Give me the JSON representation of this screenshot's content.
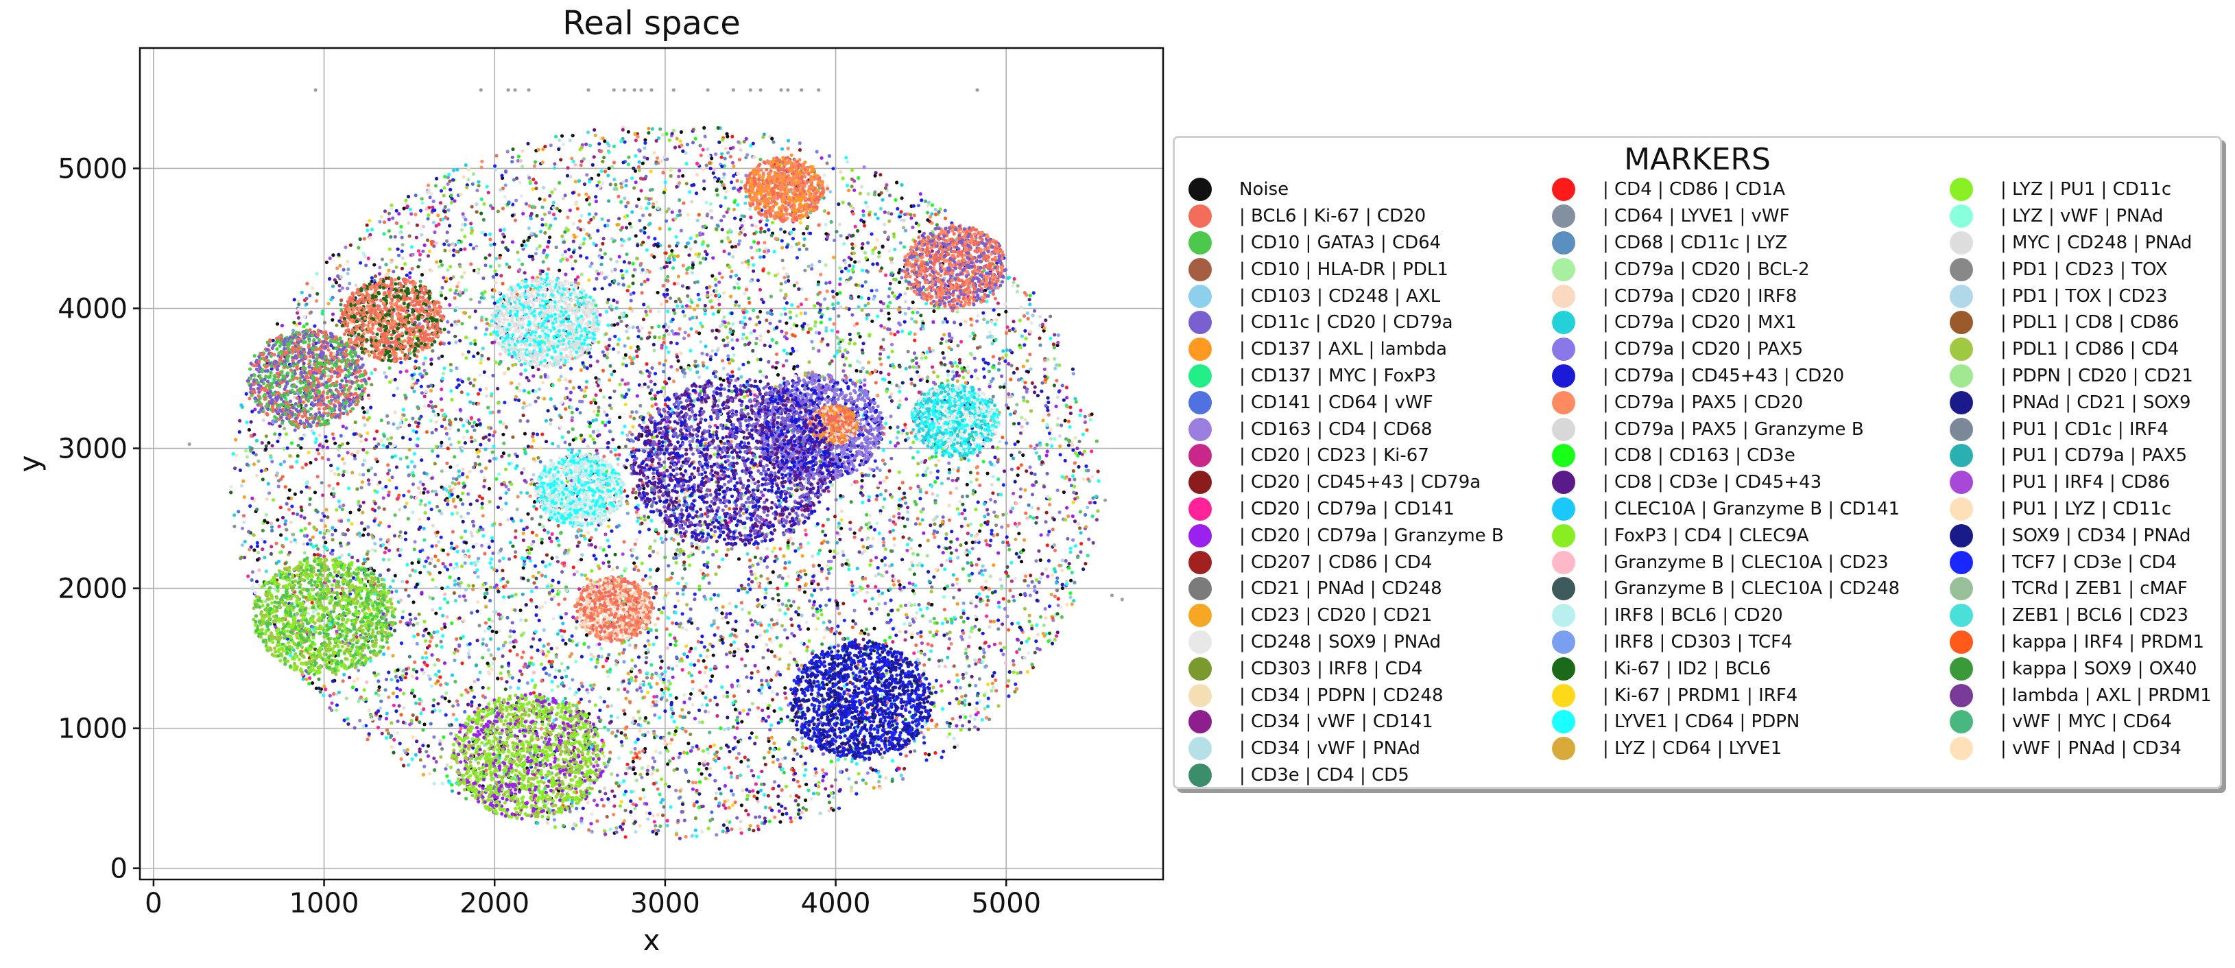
{
  "chart_data": {
    "type": "scatter",
    "title": "Real space",
    "xlabel": "x",
    "ylabel": "y",
    "xlim": [
      -80,
      5920
    ],
    "ylim": [
      -80,
      5860
    ],
    "xticks": [
      0,
      1000,
      2000,
      3000,
      4000,
      5000
    ],
    "yticks": [
      0,
      1000,
      2000,
      3000,
      4000,
      5000
    ],
    "grid": true,
    "legend_placement": "right",
    "legend_title": "MARKERS",
    "region": {
      "center": [
        3000,
        2760
      ],
      "radius_x": 2550,
      "radius_y": 2550
    },
    "series": [
      {
        "name": "Noise",
        "color": "#111111",
        "weight": 8
      },
      {
        "name": "| BCL6 | Ki-67 | CD20",
        "color": "#f46d5a",
        "weight": 6
      },
      {
        "name": "| CD10 | GATA3 | CD64",
        "color": "#4cc94c",
        "weight": 3
      },
      {
        "name": "| CD10 | HLA-DR | PDL1",
        "color": "#a65e42",
        "weight": 1
      },
      {
        "name": "| CD103 | CD248 | AXL",
        "color": "#8ecfee",
        "weight": 2
      },
      {
        "name": "| CD11c | CD20 | CD79a",
        "color": "#7a5fd1",
        "weight": 5
      },
      {
        "name": "| CD137 | AXL | lambda",
        "color": "#ff9922",
        "weight": 2
      },
      {
        "name": "| CD137 | MYC | FoxP3",
        "color": "#22ee88",
        "weight": 2
      },
      {
        "name": "| CD141 | CD64 | vWF",
        "color": "#4f72e0",
        "weight": 3
      },
      {
        "name": "| CD163 | CD4 | CD68",
        "color": "#9b7fe0",
        "weight": 4
      },
      {
        "name": "| CD20 | CD23 | Ki-67",
        "color": "#c9288a",
        "weight": 2
      },
      {
        "name": "| CD20 | CD45+43 | CD79a",
        "color": "#8b1c1c",
        "weight": 1
      },
      {
        "name": "| CD20 | CD79a | CD141",
        "color": "#ff2299",
        "weight": 2
      },
      {
        "name": "| CD20 | CD79a | Granzyme B",
        "color": "#9b22ee",
        "weight": 4
      },
      {
        "name": "| CD207 | CD86 | CD4",
        "color": "#a01f1f",
        "weight": 1
      },
      {
        "name": "| CD21 | PNAd | CD248",
        "color": "#7b7b7b",
        "weight": 1
      },
      {
        "name": "| CD23 | CD20 | CD21",
        "color": "#f5a623",
        "weight": 2
      },
      {
        "name": "| CD248 | SOX9 | PNAd",
        "color": "#e8e8e8",
        "weight": 3
      },
      {
        "name": "| CD303 | IRF8 | CD4",
        "color": "#7a9a2e",
        "weight": 2
      },
      {
        "name": "| CD34 | PDPN | CD248",
        "color": "#f5deb3",
        "weight": 1
      },
      {
        "name": "| CD34 | vWF | CD141",
        "color": "#8e1e8e",
        "weight": 2
      },
      {
        "name": "| CD34 | vWF | PNAd",
        "color": "#b6e0e8",
        "weight": 1
      },
      {
        "name": "| CD3e | CD4 | CD5",
        "color": "#3a8f6a",
        "weight": 1
      },
      {
        "name": "| CD4 | CD86 | CD1A",
        "color": "#ff1a1a",
        "weight": 2
      },
      {
        "name": "| CD64 | LYVE1 | vWF",
        "color": "#8390a0",
        "weight": 1
      },
      {
        "name": "| CD68 | CD11c | LYZ",
        "color": "#5b8fc0",
        "weight": 1
      },
      {
        "name": "| CD79a | CD20 | BCL-2",
        "color": "#a8f0a0",
        "weight": 2
      },
      {
        "name": "| CD79a | CD20 | IRF8",
        "color": "#fbd8c0",
        "weight": 2
      },
      {
        "name": "| CD79a | CD20 | MX1",
        "color": "#22d2d8",
        "weight": 3
      },
      {
        "name": "| CD79a | CD20 | PAX5",
        "color": "#8a78e8",
        "weight": 3
      },
      {
        "name": "| CD79a | CD45+43 | CD20",
        "color": "#1a1ad8",
        "weight": 6
      },
      {
        "name": "| CD79a | PAX5 | CD20",
        "color": "#ff8a60",
        "weight": 3
      },
      {
        "name": "| CD79a | PAX5 | Granzyme B",
        "color": "#d8d8d8",
        "weight": 2
      },
      {
        "name": "| CD8 | CD163 | CD3e",
        "color": "#1aff1a",
        "weight": 2
      },
      {
        "name": "| CD8 | CD3e | CD45+43",
        "color": "#5a1a8a",
        "weight": 3
      },
      {
        "name": "| CLEC10A | Granzyme B | CD141",
        "color": "#1ac8ff",
        "weight": 2
      },
      {
        "name": "| FoxP3 | CD4 | CLEC9A",
        "color": "#88ee22",
        "weight": 3
      },
      {
        "name": "| Granzyme B | CLEC10A | CD23",
        "color": "#ffb8c8",
        "weight": 1
      },
      {
        "name": "| Granzyme B | CLEC10A | CD248",
        "color": "#3f5a5a",
        "weight": 1
      },
      {
        "name": "| IRF8 | BCL6 | CD20",
        "color": "#b8f0f0",
        "weight": 2
      },
      {
        "name": "| IRF8 | CD303 | TCF4",
        "color": "#7a9ef0",
        "weight": 2
      },
      {
        "name": "| Ki-67 | ID2 | BCL6",
        "color": "#1a6a1a",
        "weight": 2
      },
      {
        "name": "| Ki-67 | PRDM1 | IRF4",
        "color": "#ffd81a",
        "weight": 1
      },
      {
        "name": "| LYVE1 | CD64 | PDPN",
        "color": "#1affff",
        "weight": 6
      },
      {
        "name": "| LYZ | CD64 | LYVE1",
        "color": "#d8a838",
        "weight": 1
      },
      {
        "name": "| LYZ | PU1 | CD11c",
        "color": "#88f022",
        "weight": 3
      },
      {
        "name": "| LYZ | vWF | PNAd",
        "color": "#88ffdd",
        "weight": 1
      },
      {
        "name": "| MYC | CD248 | PNAd",
        "color": "#dddddd",
        "weight": 2
      },
      {
        "name": "| PD1 | CD23 | TOX",
        "color": "#888888",
        "weight": 1
      },
      {
        "name": "| PD1 | TOX | CD23",
        "color": "#b0d8e8",
        "weight": 1
      },
      {
        "name": "| PDL1 | CD8 | CD86",
        "color": "#9a5a2a",
        "weight": 1
      },
      {
        "name": "| PDL1 | CD86 | CD4",
        "color": "#a0c840",
        "weight": 3
      },
      {
        "name": "| PDPN | CD20 | CD21",
        "color": "#a0e890",
        "weight": 2
      },
      {
        "name": "| PNAd | CD21 | SOX9",
        "color": "#1a1a8a",
        "weight": 2
      },
      {
        "name": "| PU1 | CD1c | IRF4",
        "color": "#7a8898",
        "weight": 1
      },
      {
        "name": "| PU1 | CD79a | PAX5",
        "color": "#2ab0b0",
        "weight": 1
      },
      {
        "name": "| PU1 | IRF4 | CD86",
        "color": "#a848d8",
        "weight": 2
      },
      {
        "name": "| PU1 | LYZ | CD11c",
        "color": "#fde0b8",
        "weight": 1
      },
      {
        "name": "| SOX9 | CD34 | PNAd",
        "color": "#1a1a88",
        "weight": 2
      },
      {
        "name": "| TCF7 | CD3e | CD4",
        "color": "#1a28ff",
        "weight": 5
      },
      {
        "name": "| TCRd | ZEB1 | cMAF",
        "color": "#98c098",
        "weight": 1
      },
      {
        "name": "| ZEB1 | BCL6 | CD23",
        "color": "#48e0d8",
        "weight": 2
      },
      {
        "name": "| kappa | IRF4 | PRDM1",
        "color": "#ff5a1a",
        "weight": 2
      },
      {
        "name": "| kappa | SOX9 | OX40",
        "color": "#3a9a3a",
        "weight": 1
      },
      {
        "name": "| lambda | AXL | PRDM1",
        "color": "#7a3a9a",
        "weight": 2
      },
      {
        "name": "| vWF | MYC | CD64",
        "color": "#48b880",
        "weight": 1
      },
      {
        "name": "| vWF | PNAd | CD34",
        "color": "#ffe0b8",
        "weight": 1
      }
    ],
    "clusters": [
      {
        "center": [
          1400,
          3920
        ],
        "radius": 300,
        "colors": [
          "#f46d5a",
          "#1a6a1a",
          "#ff8a60",
          "#f46d5a"
        ]
      },
      {
        "center": [
          3900,
          3150
        ],
        "radius": 380,
        "colors": [
          "#8a78e8",
          "#9b7fe0",
          "#7a5fd1",
          "#1a1ad8"
        ]
      },
      {
        "center": [
          3990,
          3170
        ],
        "radius": 140,
        "colors": [
          "#f46d5a",
          "#fbd8c0",
          "#ff9922"
        ]
      },
      {
        "center": [
          2700,
          1850
        ],
        "radius": 230,
        "colors": [
          "#f46d5a",
          "#ff8a60",
          "#fbd8c0"
        ]
      },
      {
        "center": [
          3700,
          4850
        ],
        "radius": 230,
        "colors": [
          "#f46d5a",
          "#ff8a60",
          "#ff9922"
        ]
      },
      {
        "center": [
          4150,
          1200
        ],
        "radius": 420,
        "colors": [
          "#1a1ad8",
          "#1a28ff",
          "#1a1a88"
        ]
      },
      {
        "center": [
          3400,
          2900
        ],
        "radius": 600,
        "colors": [
          "#1a1ad8",
          "#5a1a8a",
          "#7a5fd1"
        ]
      },
      {
        "center": [
          2300,
          3900
        ],
        "radius": 320,
        "colors": [
          "#e8e8e8",
          "#1affff",
          "#dddddd"
        ]
      },
      {
        "center": [
          2500,
          2700
        ],
        "radius": 260,
        "colors": [
          "#e8e8e8",
          "#1affff",
          "#b8f0f0"
        ]
      },
      {
        "center": [
          4700,
          3200
        ],
        "radius": 260,
        "colors": [
          "#1affff",
          "#22d2d8",
          "#e8e8e8"
        ]
      },
      {
        "center": [
          2200,
          800
        ],
        "radius": 450,
        "colors": [
          "#88ee22",
          "#a0c840",
          "#88f022",
          "#9b22ee"
        ]
      },
      {
        "center": [
          1000,
          1800
        ],
        "radius": 420,
        "colors": [
          "#88ee22",
          "#4cc94c",
          "#a0c840"
        ]
      },
      {
        "center": [
          900,
          3500
        ],
        "radius": 350,
        "colors": [
          "#4cc94c",
          "#f46d5a",
          "#7a5fd1"
        ]
      },
      {
        "center": [
          4700,
          4300
        ],
        "radius": 300,
        "colors": [
          "#f46d5a",
          "#7a5fd1",
          "#ff8a60"
        ]
      }
    ],
    "outliers": [
      [
        950,
        5560
      ],
      [
        1920,
        5560
      ],
      [
        2080,
        5560
      ],
      [
        2120,
        5560
      ],
      [
        2200,
        5560
      ],
      [
        2550,
        5560
      ],
      [
        2700,
        5560
      ],
      [
        2760,
        5560
      ],
      [
        2820,
        5560
      ],
      [
        2860,
        5560
      ],
      [
        2920,
        5560
      ],
      [
        3050,
        5560
      ],
      [
        3250,
        5560
      ],
      [
        3400,
        5560
      ],
      [
        3500,
        5560
      ],
      [
        3560,
        5560
      ],
      [
        3680,
        5560
      ],
      [
        3720,
        5560
      ],
      [
        3800,
        5560
      ],
      [
        3900,
        5560
      ],
      [
        4830,
        5560
      ],
      [
        5580,
        2630
      ],
      [
        5620,
        1950
      ],
      [
        5680,
        1920
      ],
      [
        210,
        3030
      ]
    ]
  }
}
